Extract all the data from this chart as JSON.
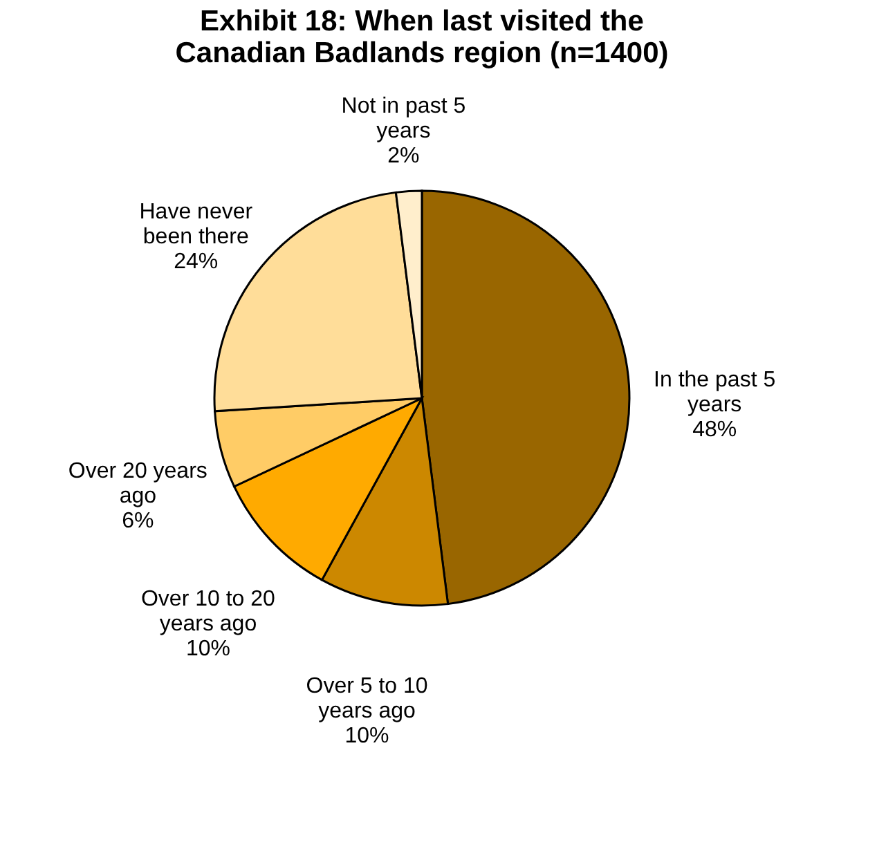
{
  "chart_data": {
    "type": "pie",
    "title": "Exhibit 18: When last visited the Canadian Badlands region (n=1400)",
    "categories": [
      "In the past 5 years",
      "Over 5 to 10 years ago",
      "Over 10 to 20 years ago",
      "Over 20 years ago",
      "Have never been there",
      "Not in past 5 years"
    ],
    "values": [
      48,
      10,
      10,
      6,
      24,
      2
    ],
    "value_labels": [
      "48%",
      "10%",
      "10%",
      "6%",
      "24%",
      "2%"
    ],
    "colors": [
      "#996600",
      "#cc8800",
      "#ffaa00",
      "#ffcc66",
      "#ffdd99",
      "#ffeecc"
    ],
    "legend": false
  }
}
